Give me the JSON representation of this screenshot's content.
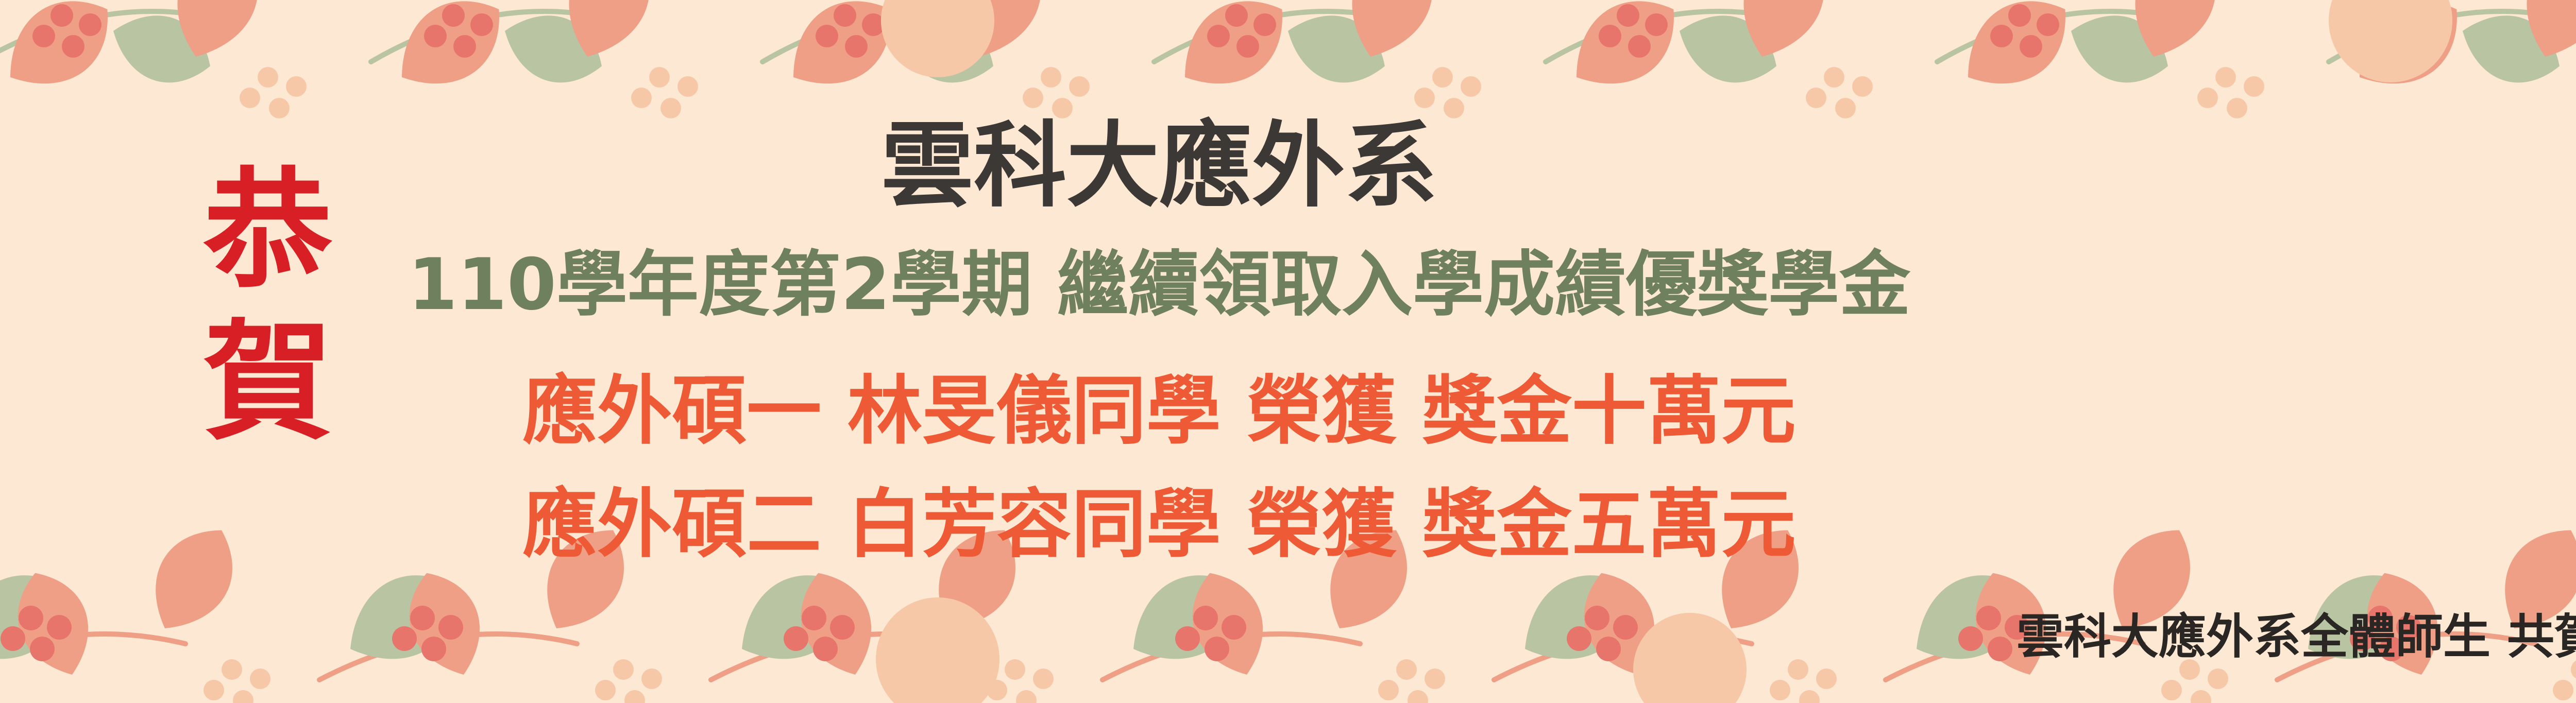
{
  "banner": {
    "congrats_chars": [
      "恭",
      "賀"
    ],
    "dept_title": "雲科大應外系",
    "program_line": "110學年度第2學期 繼續領取入學成績優獎學金",
    "awards": [
      "應外碩一 林旻儀同學  榮獲 獎金十萬元",
      "應外碩二 白芳容同學  榮獲 獎金五萬元"
    ],
    "signature": "雲科大應外系全體師生 共賀"
  },
  "colors": {
    "background": "#fde9d3",
    "congrats_red": "#d91f26",
    "title_dark": "#3c3835",
    "program_green": "#6e805e",
    "award_orange": "#ee5a36",
    "leaf_orange": "#ee9f86",
    "leaf_green": "#b9c4a3",
    "berry_red": "#e8756b",
    "berry_peach": "#f6c8a8"
  },
  "decoration": {
    "motif": "floral-branch-pattern",
    "icons": [
      "leaf-icon",
      "berry-cluster-icon",
      "peach-fruit-icon"
    ]
  }
}
